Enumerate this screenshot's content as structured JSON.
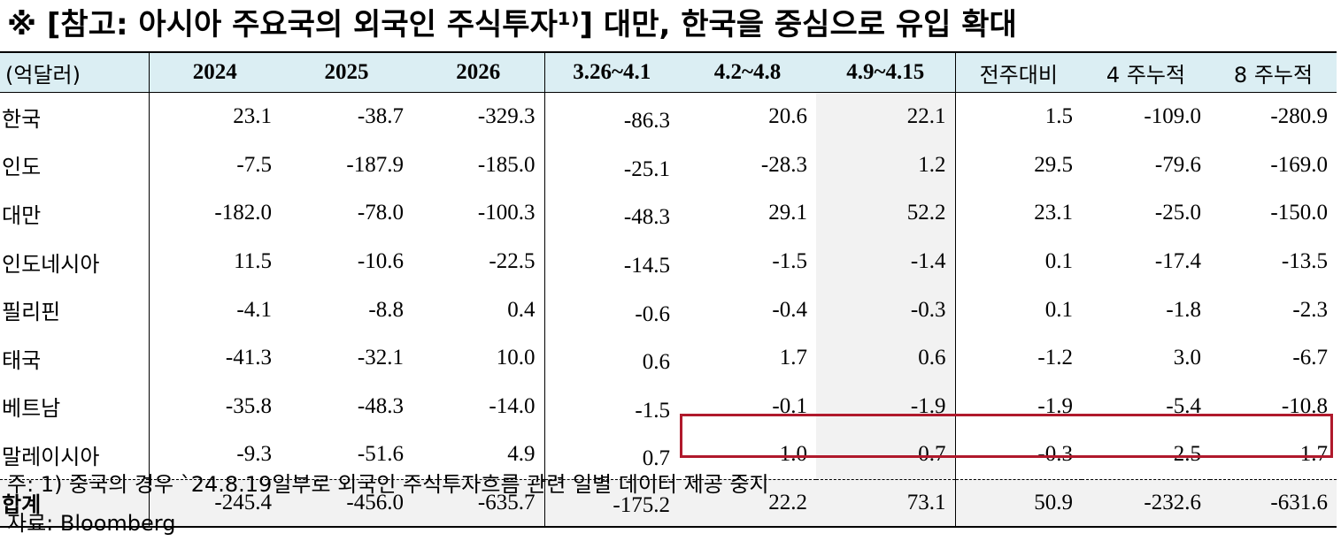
{
  "title": "※ [참고: 아시아 주요국의 외국인 주식투자¹⁾] 대만, 한국을 중심으로 유입 확대",
  "table": {
    "headers": [
      "(억달러)",
      "2024",
      "2025",
      "2026",
      "3.26~4.1",
      "4.2~4.8",
      "4.9~4.15",
      "전주대비",
      "4 주누적",
      "8 주누적"
    ],
    "rows": [
      {
        "name": "한국",
        "values": [
          "23.1",
          "-38.7",
          "-329.3",
          "-86.3",
          "20.6",
          "22.1",
          "1.5",
          "-109.0",
          "-280.9"
        ]
      },
      {
        "name": "인도",
        "values": [
          "-7.5",
          "-187.9",
          "-185.0",
          "-25.1",
          "-28.3",
          "1.2",
          "29.5",
          "-79.6",
          "-169.0"
        ]
      },
      {
        "name": "대만",
        "values": [
          "-182.0",
          "-78.0",
          "-100.3",
          "-48.3",
          "29.1",
          "52.2",
          "23.1",
          "-25.0",
          "-150.0"
        ]
      },
      {
        "name": "인도네시아",
        "values": [
          "11.5",
          "-10.6",
          "-22.5",
          "-14.5",
          "-1.5",
          "-1.4",
          "0.1",
          "-17.4",
          "-13.5"
        ]
      },
      {
        "name": "필리핀",
        "values": [
          "-4.1",
          "-8.8",
          "0.4",
          "-0.6",
          "-0.4",
          "-0.3",
          "0.1",
          "-1.8",
          "-2.3"
        ]
      },
      {
        "name": "태국",
        "values": [
          "-41.3",
          "-32.1",
          "10.0",
          "0.6",
          "1.7",
          "0.6",
          "-1.2",
          "3.0",
          "-6.7"
        ]
      },
      {
        "name": "베트남",
        "values": [
          "-35.8",
          "-48.3",
          "-14.0",
          "-1.5",
          "-0.1",
          "-1.9",
          "-1.9",
          "-5.4",
          "-10.8"
        ]
      },
      {
        "name": "말레이시아",
        "values": [
          "-9.3",
          "-51.6",
          "4.9",
          "0.7",
          "1.0",
          "0.7",
          "-0.3",
          "2.5",
          "1.7"
        ]
      }
    ],
    "total": {
      "name": "합계",
      "values": [
        "-245.4",
        "-456.0",
        "-635.7",
        "-175.2",
        "22.2",
        "73.1",
        "50.9",
        "-232.6",
        "-631.6"
      ]
    }
  },
  "notes": {
    "note1": "주: 1) 중국의 경우 `24.8.19일부로 외국인 주식투자흐름 관련 일별 데이터 제공 중지",
    "source": "자료: Bloomberg"
  },
  "colors": {
    "header_bg": "#dbeef3",
    "highlight_box": "#b0192c",
    "shade": "#f2f2f2"
  }
}
